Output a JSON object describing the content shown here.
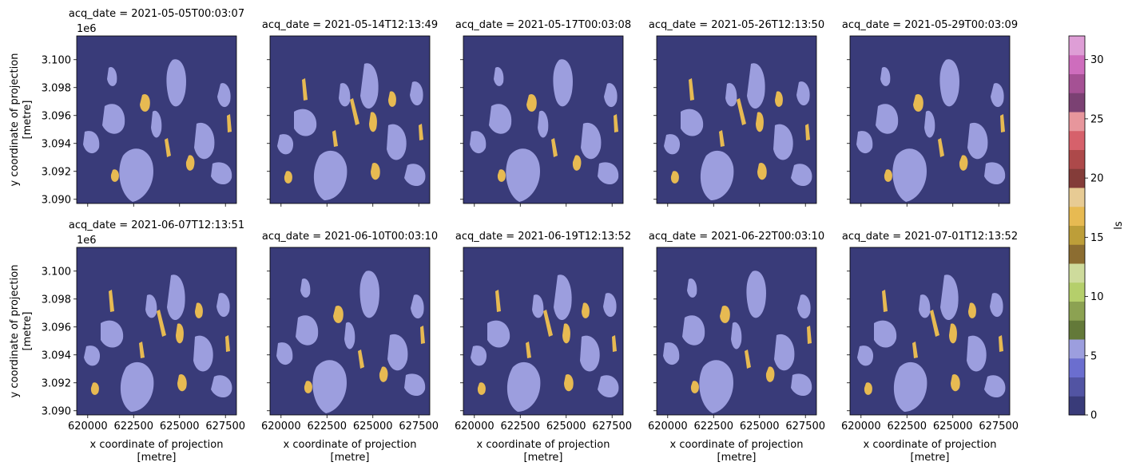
{
  "chart_data": {
    "type": "heatmap",
    "facet_label_prefix": "acq_date = ",
    "panels": [
      {
        "acq_date": "2021-05-05T00:03:07",
        "row": 0,
        "col": 0
      },
      {
        "acq_date": "2021-05-14T12:13:49",
        "row": 0,
        "col": 1
      },
      {
        "acq_date": "2021-05-17T00:03:08",
        "row": 0,
        "col": 2
      },
      {
        "acq_date": "2021-05-26T12:13:50",
        "row": 0,
        "col": 3
      },
      {
        "acq_date": "2021-05-29T00:03:09",
        "row": 0,
        "col": 4
      },
      {
        "acq_date": "2021-06-07T12:13:51",
        "row": 1,
        "col": 0
      },
      {
        "acq_date": "2021-06-10T00:03:10",
        "row": 1,
        "col": 1
      },
      {
        "acq_date": "2021-06-19T12:13:52",
        "row": 1,
        "col": 2
      },
      {
        "acq_date": "2021-06-22T00:03:10",
        "row": 1,
        "col": 3
      },
      {
        "acq_date": "2021-07-01T12:13:52",
        "row": 1,
        "col": 4
      }
    ],
    "xlabel": [
      "x coordinate of projection",
      "[metre]"
    ],
    "ylabel": [
      "y coordinate of projection",
      "[metre]"
    ],
    "y_offset_label": "1e6",
    "xlim": [
      619400,
      628100
    ],
    "ylim": [
      3.0897,
      3.1017
    ],
    "xticks": [
      620000,
      622500,
      625000,
      627500
    ],
    "xtick_labels": [
      "620000",
      "622500",
      "625000",
      "627500"
    ],
    "yticks": [
      3.09,
      3.092,
      3.094,
      3.096,
      3.098,
      3.1
    ],
    "ytick_labels": [
      "3.090",
      "3.092",
      "3.094",
      "3.096",
      "3.098",
      "3.100"
    ],
    "colorbar": {
      "label": "ls",
      "vmin": 0,
      "vmax": 32,
      "ticks": [
        0,
        5,
        10,
        15,
        20,
        25,
        30
      ],
      "tick_labels": [
        "0",
        "5",
        "10",
        "15",
        "20",
        "25",
        "30"
      ],
      "colors": [
        "#393b79",
        "#5254a3",
        "#6b6ecf",
        "#9c9ede",
        "#637939",
        "#8ca252",
        "#b5cf6b",
        "#cedb9c",
        "#8c6d31",
        "#bd9e39",
        "#e7ba52",
        "#e7cb94",
        "#843c39",
        "#ad494a",
        "#d6616b",
        "#e7969c",
        "#7b4173",
        "#a55194",
        "#ce6dbd",
        "#de9ed6"
      ]
    },
    "classes_present": [
      {
        "value": 0,
        "color": "#393b79"
      },
      {
        "value": 6,
        "color": "#9c9ede"
      },
      {
        "value": 17,
        "color": "#e7ba52"
      }
    ]
  }
}
